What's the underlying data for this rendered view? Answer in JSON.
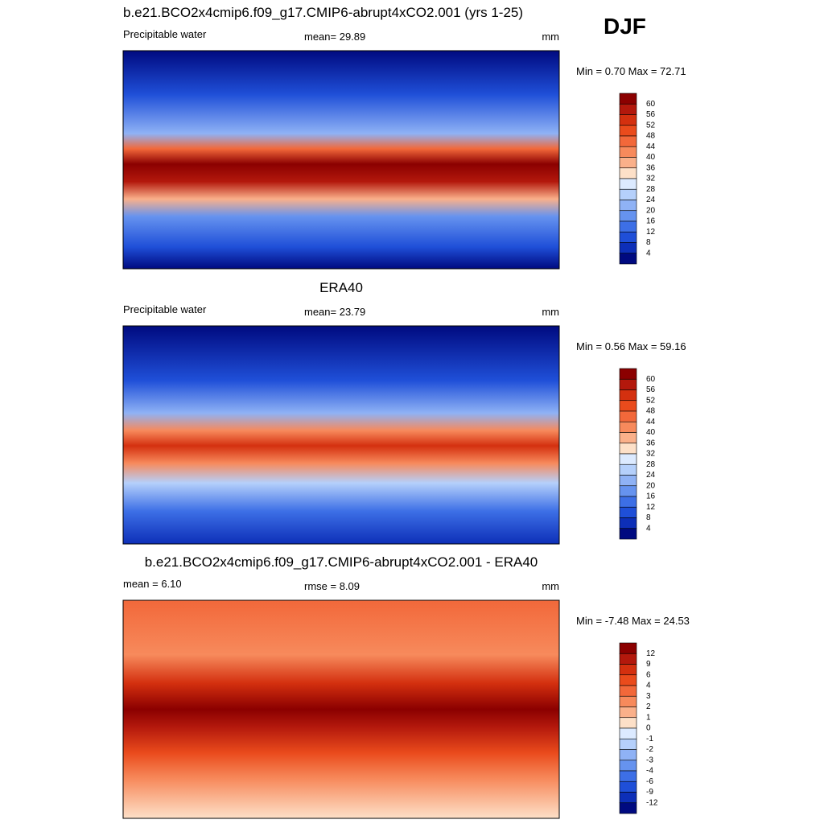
{
  "header": {
    "season": "DJF"
  },
  "panels": [
    {
      "title": "b.e21.BCO2x4cmip6.f09_g17.CMIP6-abrupt4xCO2.001 (yrs 1-25)",
      "left": "Precipitable water",
      "center": "mean=  29.89",
      "right": "mm",
      "stats": "Min =   0.70 Max =  72.71",
      "colorbar": {
        "labels": [
          60,
          56,
          52,
          48,
          44,
          40,
          36,
          32,
          28,
          24,
          20,
          16,
          12,
          8,
          4
        ],
        "colors": [
          "#8b0000",
          "#b3180c",
          "#d4300f",
          "#ea4b1c",
          "#f2683a",
          "#f78a5c",
          "#fab08a",
          "#fde0c8",
          "#dceaff",
          "#b5d0fb",
          "#8fb2f5",
          "#6693ef",
          "#3d6fe6",
          "#1f4fd8",
          "#0d2fb8",
          "#000a80"
        ]
      }
    },
    {
      "title": "ERA40",
      "left": "Precipitable water",
      "center": "mean=  23.79",
      "right": "mm",
      "stats": "Min =   0.56 Max =  59.16",
      "colorbar": {
        "labels": [
          60,
          56,
          52,
          48,
          44,
          40,
          36,
          32,
          28,
          24,
          20,
          16,
          12,
          8,
          4
        ],
        "colors": [
          "#8b0000",
          "#b3180c",
          "#d4300f",
          "#ea4b1c",
          "#f2683a",
          "#f78a5c",
          "#fab08a",
          "#fde0c8",
          "#dceaff",
          "#b5d0fb",
          "#8fb2f5",
          "#6693ef",
          "#3d6fe6",
          "#1f4fd8",
          "#0d2fb8",
          "#000a80"
        ]
      }
    },
    {
      "title": "b.e21.BCO2x4cmip6.f09_g17.CMIP6-abrupt4xCO2.001 - ERA40",
      "left": "mean =   6.10",
      "center": "rmse =   8.09",
      "right": "mm",
      "stats": "Min =  -7.48 Max =  24.53",
      "colorbar": {
        "labels": [
          12,
          9,
          6,
          4,
          3,
          2,
          1,
          0,
          -1,
          -2,
          -3,
          -4,
          -6,
          -9,
          -12
        ],
        "colors": [
          "#8b0000",
          "#b3180c",
          "#d4300f",
          "#ea4b1c",
          "#f2683a",
          "#f78a5c",
          "#fab08a",
          "#fde0c8",
          "#dceaff",
          "#b5d0fb",
          "#8fb2f5",
          "#6693ef",
          "#3d6fe6",
          "#1f4fd8",
          "#0d2fb8",
          "#000a80"
        ]
      }
    }
  ]
}
